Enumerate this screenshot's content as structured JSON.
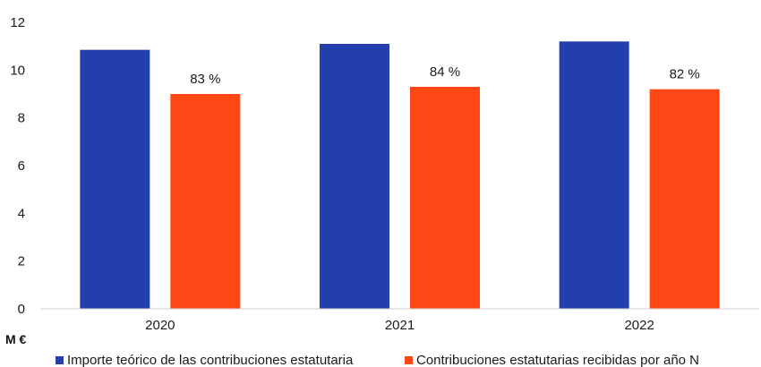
{
  "chart_data": {
    "type": "bar",
    "title": "",
    "ylabel": "M €",
    "xlabel": "",
    "ylim": [
      0,
      12
    ],
    "yticks": [
      0,
      2,
      4,
      6,
      8,
      10,
      12
    ],
    "categories": [
      "2020",
      "2021",
      "2022"
    ],
    "series": [
      {
        "name": "Importe teórico de las contribuciones estatutaria",
        "color": "#233fab",
        "values": [
          10.85,
          11.1,
          11.2
        ]
      },
      {
        "name": "Contribuciones estatutarias recibidas por año N",
        "color": "#fe4714",
        "values": [
          9.0,
          9.3,
          9.2
        ],
        "labels": [
          "83 %",
          "84 %",
          "82 %"
        ]
      }
    ],
    "grid": false,
    "legend": "bottom"
  }
}
